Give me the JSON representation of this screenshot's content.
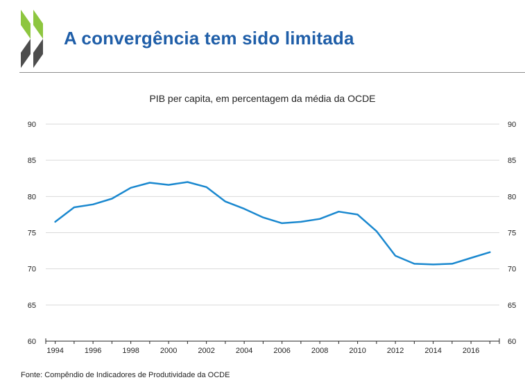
{
  "header": {
    "title": "A convergência tem sido limitada"
  },
  "footer": {
    "source": "Fonte: Compêndio de Indicadores de Produtividade da OCDE"
  },
  "colors": {
    "title": "#1f5ea8",
    "line": "#1a88cf",
    "logo_light": "#8dc63f",
    "logo_dark": "#4d4d4d",
    "grid": "#d9d9d9"
  },
  "chart_data": {
    "type": "line",
    "title": "PIB per capita, em percentagem da média da OCDE",
    "xlabel": "",
    "ylabel": "",
    "ylim": [
      60,
      90
    ],
    "yticks": [
      60,
      65,
      70,
      75,
      80,
      85,
      90
    ],
    "xlim": [
      1993.5,
      2017.5
    ],
    "xticks": [
      1994,
      1996,
      1998,
      2000,
      2002,
      2004,
      2006,
      2008,
      2010,
      2012,
      2014,
      2016
    ],
    "grid": true,
    "y_axis_both_sides": true,
    "series": [
      {
        "x": [
          1994,
          1995,
          1996,
          1997,
          1998,
          1999,
          2000,
          2001,
          2002,
          2003,
          2004,
          2005,
          2006,
          2007,
          2008,
          2009,
          2010,
          2011,
          2012,
          2013,
          2014,
          2015,
          2016,
          2017
        ],
        "y": [
          76.5,
          78.5,
          78.9,
          79.7,
          81.2,
          81.9,
          81.6,
          82.0,
          81.3,
          79.3,
          78.3,
          77.1,
          76.3,
          76.5,
          76.9,
          77.9,
          77.5,
          75.2,
          71.8,
          70.7,
          70.6,
          70.7,
          71.5,
          72.3
        ]
      }
    ]
  }
}
